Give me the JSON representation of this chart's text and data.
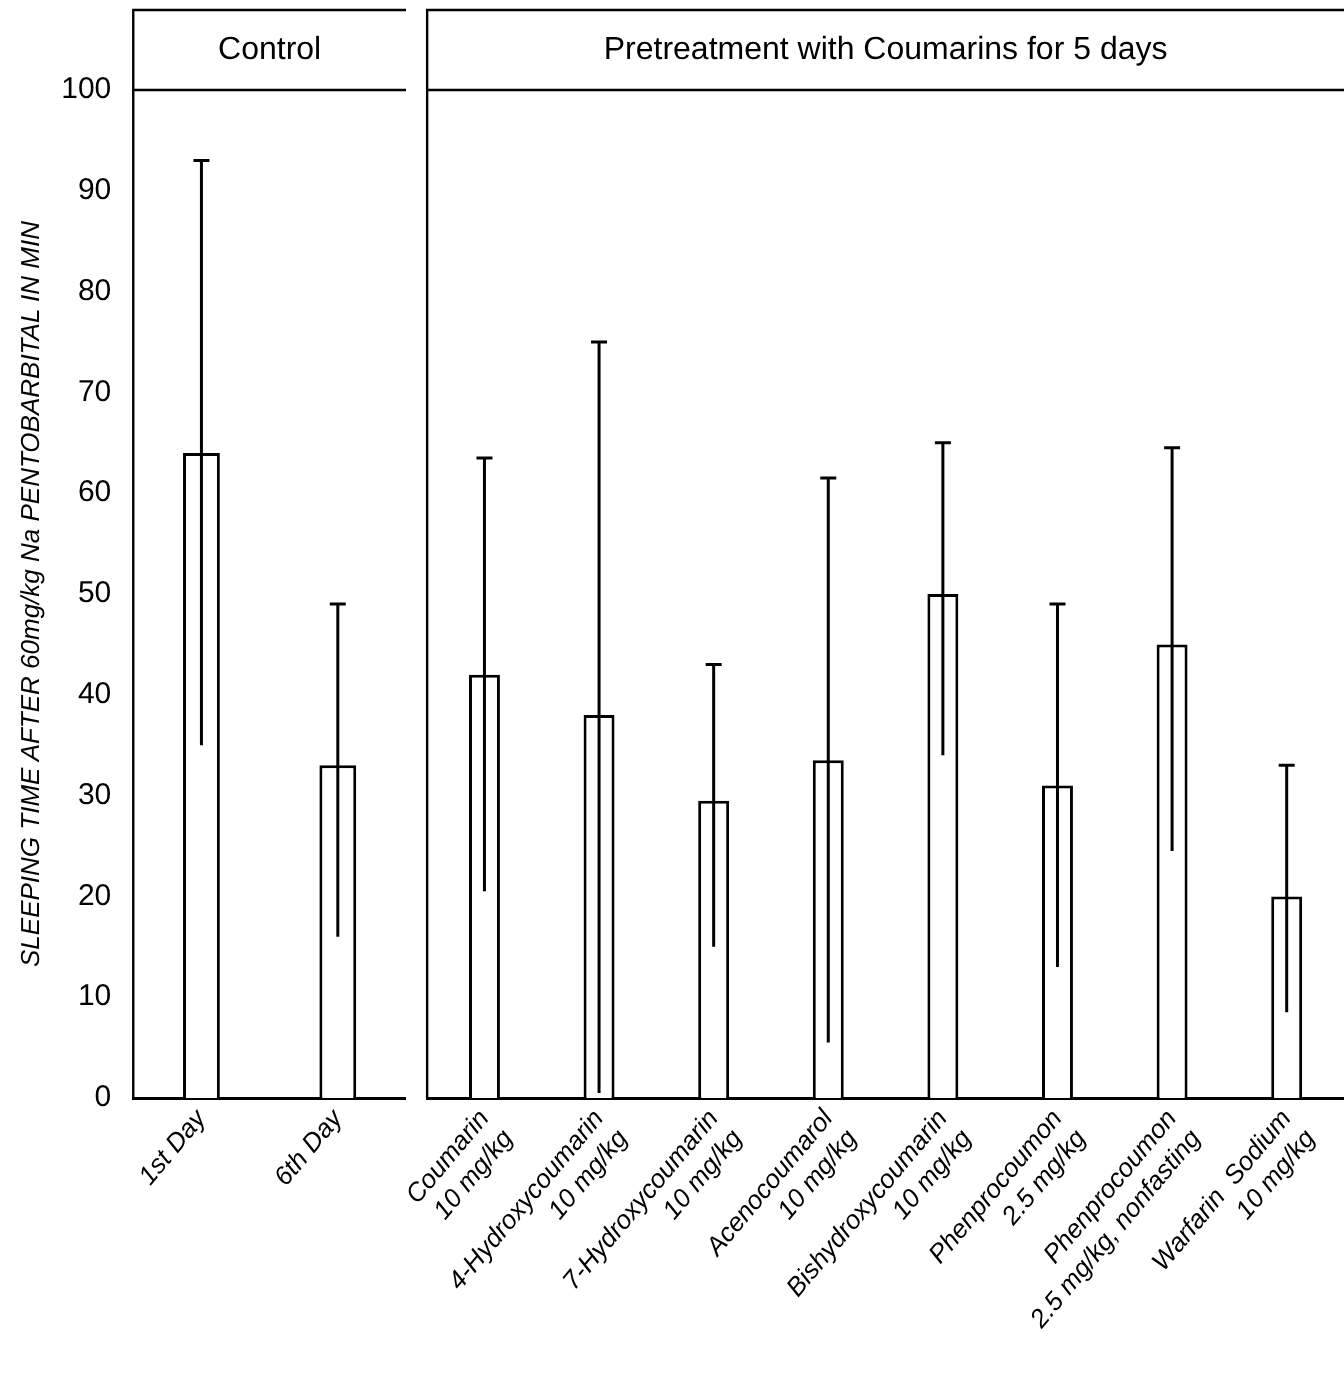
{
  "chart_data": [
    {
      "type": "bar",
      "title": "Control",
      "ylabel": "SLEEPING TIME AFTER 60mg/kg Na PENTOBARBITAL IN MIN",
      "categories": [
        "1st Day",
        "6th Day"
      ],
      "values": [
        64,
        33
      ],
      "errors": [
        [
          35,
          93
        ],
        [
          16,
          49
        ]
      ],
      "color": "#ffffff",
      "ylim": [
        0,
        100
      ],
      "yticks": [
        0,
        10,
        20,
        30,
        40,
        50,
        60,
        70,
        80,
        90,
        100
      ],
      "grid": false,
      "legend": false
    },
    {
      "type": "bar",
      "title": "Pretreatment with Coumarins for 5 days",
      "categories": [
        "Coumarin\n10 mg/kg",
        "4-Hydroxycoumarin\n10 mg/kg",
        "7-Hydroxycoumarin\n10 mg/kg",
        "Acenocoumarol\n10 mg/kg",
        "Bishydroxycoumarin\n10 mg/kg",
        "Phenprocoumon\n2.5 mg/kg",
        "Phenprocoumon\n2.5 mg/kg, nonfasting",
        "Warfarin  Sodium\n10 mg/kg"
      ],
      "values": [
        42,
        38,
        29.5,
        33.5,
        50,
        31,
        45,
        20
      ],
      "errors": [
        [
          20.5,
          63.5
        ],
        [
          0.5,
          75
        ],
        [
          15,
          43
        ],
        [
          5.5,
          61.5
        ],
        [
          34,
          65
        ],
        [
          13,
          49
        ],
        [
          24.5,
          64.5
        ],
        [
          8.5,
          33
        ]
      ],
      "color": "#ffffff",
      "ylim": [
        0,
        100
      ],
      "yticks": [
        0,
        10,
        20,
        30,
        40,
        50,
        60,
        70,
        80,
        90,
        100
      ],
      "tick_labels": "x",
      "grid": false,
      "legend": false
    }
  ]
}
